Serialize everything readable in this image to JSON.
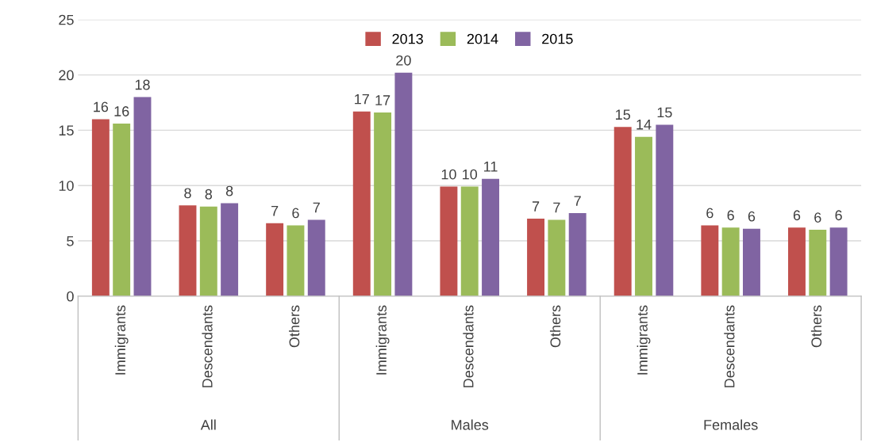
{
  "chart_data": {
    "type": "bar",
    "categories": [
      "Immigrants",
      "Descendants",
      "Others",
      "Immigrants",
      "Descendants",
      "Others",
      "Immigrants",
      "Descendants",
      "Others"
    ],
    "series": [
      {
        "name": "2013",
        "color": "#c0504d",
        "values": [
          16.0,
          8.2,
          6.6,
          16.7,
          9.9,
          7.0,
          15.3,
          6.4,
          6.2
        ],
        "value_labels": [
          "16",
          "8",
          "7",
          "17",
          "10",
          "7",
          "15",
          "6",
          "6"
        ]
      },
      {
        "name": "2014",
        "color": "#9bbb59",
        "values": [
          15.6,
          8.1,
          6.4,
          16.6,
          9.9,
          6.9,
          14.4,
          6.2,
          6.0
        ],
        "value_labels": [
          "16",
          "8",
          "6",
          "17",
          "10",
          "7",
          "14",
          "6",
          "6"
        ]
      },
      {
        "name": "2015",
        "color": "#8064a2",
        "values": [
          18.0,
          8.4,
          6.9,
          20.2,
          10.6,
          7.5,
          15.5,
          6.1,
          6.2
        ],
        "value_labels": [
          "18",
          "8",
          "7",
          "20",
          "11",
          "7",
          "15",
          "6",
          "6"
        ]
      }
    ],
    "annotations": [
      "All",
      "Males",
      "Females"
    ],
    "ylim": [
      0,
      25
    ],
    "yticks": [
      0,
      5,
      10,
      15,
      20,
      25
    ],
    "grid": "y",
    "legend": "top"
  }
}
